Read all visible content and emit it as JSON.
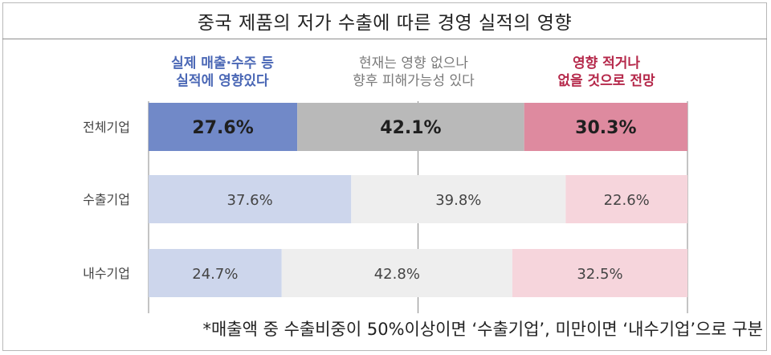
{
  "title": "중국 제품의 저가 수출에 따른 경영 실적의 영향",
  "note": "*매출액 중 수출비중이 50%이상이면 ‘수출기업’, 미만이면 ‘내수기업’으로 구분",
  "colors": {
    "strong": [
      "#7189c8",
      "#b9b9b9",
      "#de8a9f"
    ],
    "light": [
      "#cdd6ec",
      "#eeeeee",
      "#f6d5dc"
    ],
    "head": [
      "#4a67b5",
      "#7a7a7a",
      "#b5284a"
    ]
  },
  "chart_data": {
    "type": "bar",
    "orientation": "horizontal",
    "stacked": true,
    "unit": "%",
    "categories": [
      "전체기업",
      "수출기업",
      "내수기업"
    ],
    "series": [
      {
        "name": "실제 매출·수주 등 실적에 영향있다",
        "name_lines": [
          "실제 매출·수주 등",
          "실적에 영향있다"
        ],
        "values": [
          27.6,
          37.6,
          24.7
        ]
      },
      {
        "name": "현재는 영향 없으나 향후 피해가능성 있다",
        "name_lines": [
          "현재는 영향 없으나",
          "향후 피해가능성 있다"
        ],
        "values": [
          42.1,
          39.8,
          42.8
        ]
      },
      {
        "name": "영향 적거나 없을 것으로 전망",
        "name_lines": [
          "영향 적거나",
          "없을 것으로 전망"
        ],
        "values": [
          30.3,
          22.6,
          32.5
        ]
      }
    ],
    "labels": [
      [
        "27.6%",
        "42.1%",
        "30.3%"
      ],
      [
        "37.6%",
        "39.8%",
        "22.6%"
      ],
      [
        "24.7%",
        "42.8%",
        "32.5%"
      ]
    ],
    "highlight_row": 0,
    "xlim": [
      0,
      100
    ],
    "grid": false,
    "legend": "top"
  }
}
